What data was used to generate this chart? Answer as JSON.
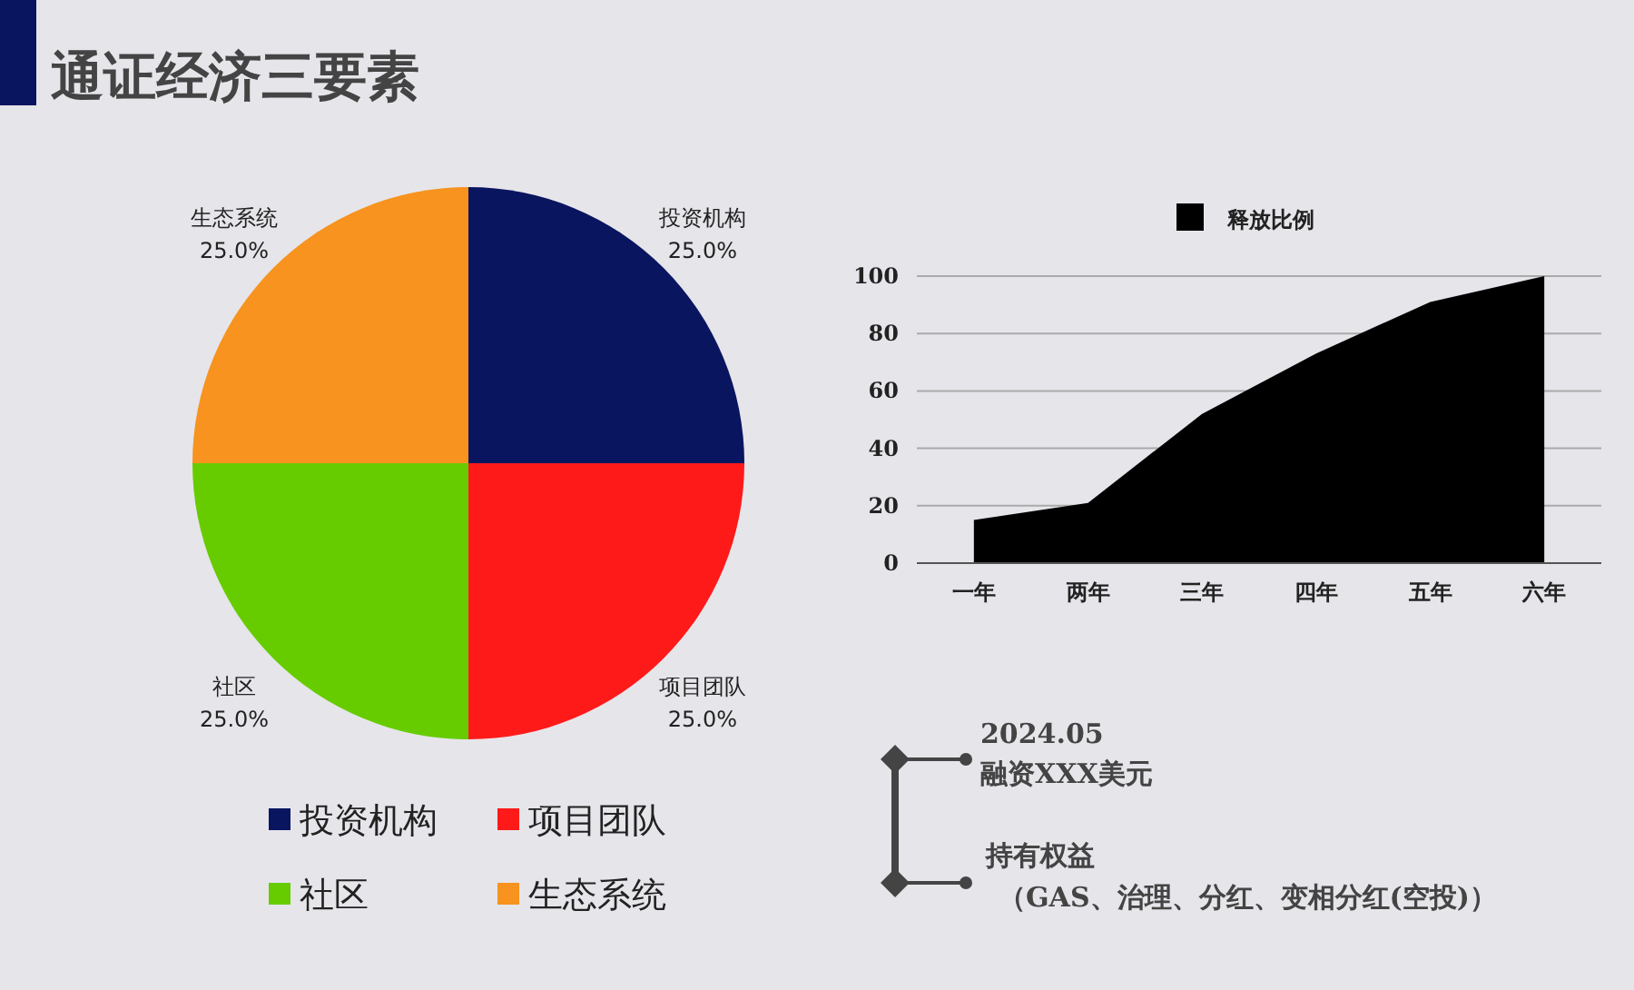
{
  "chart_data": [
    {
      "type": "pie",
      "title": "通证经济三要素",
      "categories": [
        "投资机构",
        "项目团队",
        "社区",
        "生态系统"
      ],
      "values": [
        25,
        25,
        25,
        25
      ],
      "value_labels": [
        "25.0%",
        "25.0%",
        "25.0%",
        "25.0%"
      ],
      "colors": [
        "#0a1560",
        "#ff1a1a",
        "#66cc00",
        "#f7931e"
      ],
      "legend": "bottom"
    },
    {
      "type": "area",
      "categories": [
        "一年",
        "两年",
        "三年",
        "四年",
        "五年",
        "六年"
      ],
      "series": [
        {
          "name": "释放比例",
          "color": "#000000",
          "values": [
            15,
            21,
            52,
            73,
            91,
            100
          ]
        }
      ],
      "ylim": [
        0,
        100
      ],
      "yticks": [
        0,
        20,
        40,
        60,
        80,
        100
      ],
      "grid": "y",
      "legend": "top"
    },
    {
      "type": "other",
      "annotations": [
        "2024.05",
        "融资XXX美元",
        "持有权益",
        "（GAS、治理、分红、变相分红(空投)）"
      ]
    }
  ]
}
